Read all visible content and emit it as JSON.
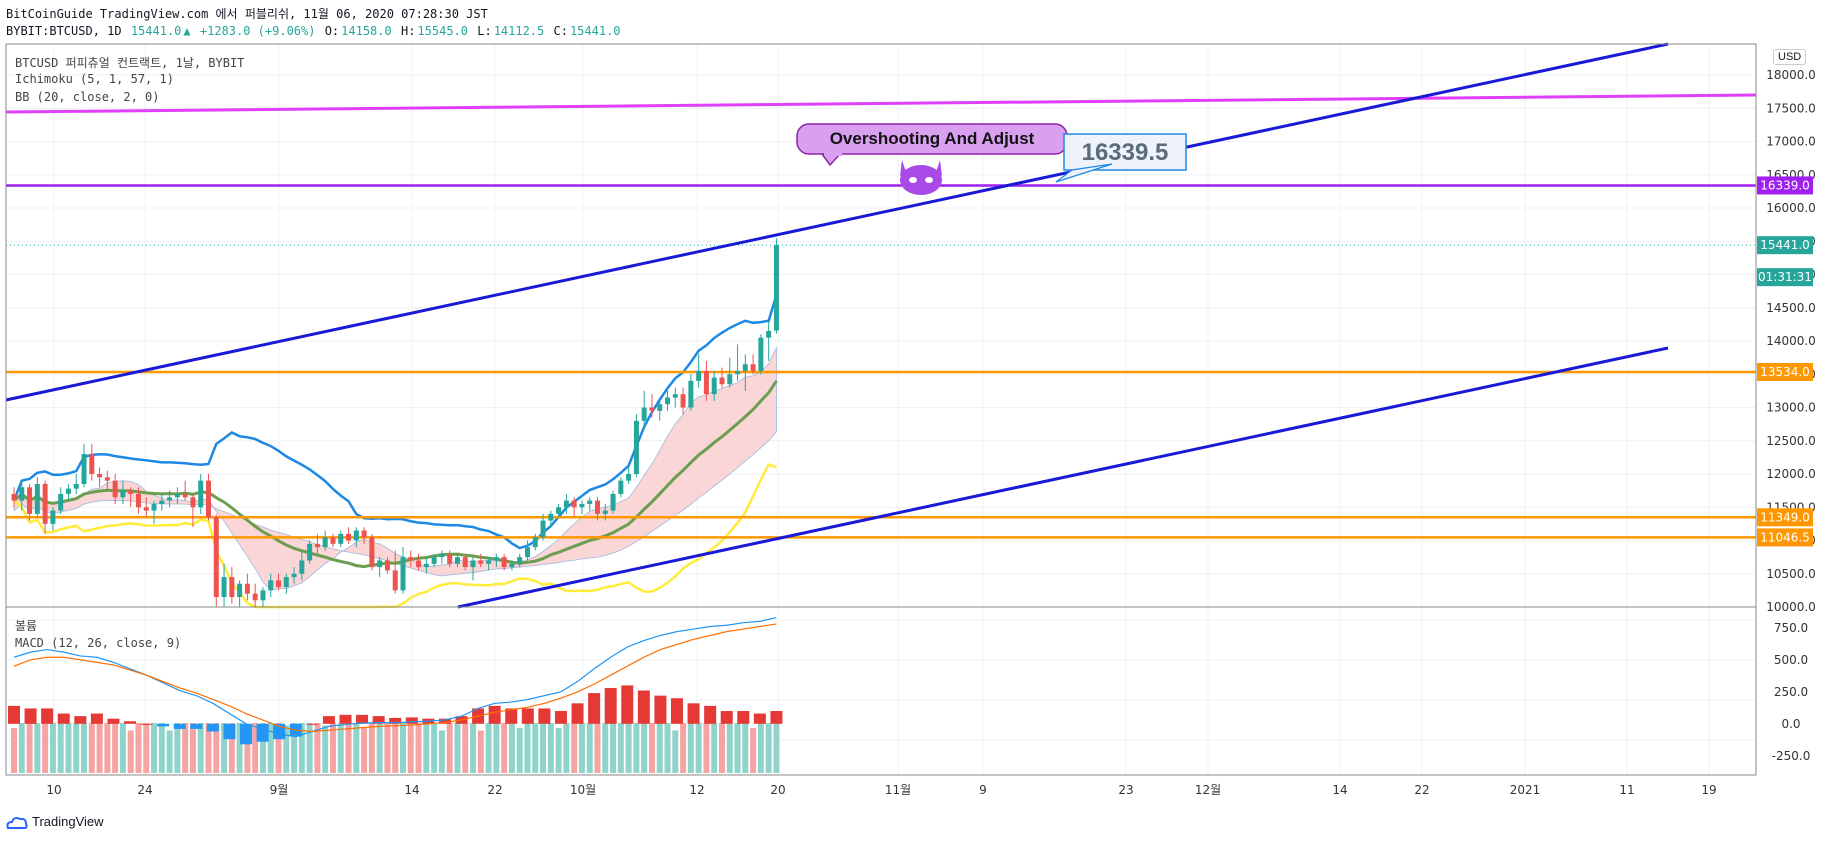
{
  "header": {
    "line1": "BitCoinGuide TradingView.com 에서 퍼블리쉬, 11월 06, 2020 07:28:30 JST",
    "symbol": "BYBIT:BTCUSD, 1D",
    "last": "15441.0",
    "change": "+1283.0 (+9.06%)",
    "o_label": "O:",
    "o": "14158.0",
    "h_label": "H:",
    "h": "15545.0",
    "l_label": "L:",
    "l": "14112.5",
    "c_label": "C:",
    "c": "15441.0"
  },
  "legend": {
    "title": "BTCUSD 퍼피츄얼 컨트랙트, 1날, BYBIT",
    "ichimoku": "Ichimoku (5, 1, 57, 1)",
    "bb": "BB (20, close, 2, 0)",
    "volume": "볼륨",
    "macd": "MACD (12, 26, close, 9)"
  },
  "currency_badge": "USD",
  "annotations": {
    "callout": "Overshooting And Adjust",
    "target_box": "16339.5"
  },
  "footer": {
    "logo_text": "TradingView"
  },
  "colors": {
    "up": "#26a69a",
    "down": "#ef5350",
    "bb": "#1e88e5",
    "sma": "#6b9e4e",
    "tenkan": "#ffeb3b",
    "cloud_red": "#f8c4c4",
    "cloud_blue": "#bbdefb",
    "trend": "#1a1ad6",
    "magenta": "#e040fb",
    "purple": "#a020f0",
    "orange": "#ff9800",
    "price_badge": "#26a69a"
  },
  "chart_data": {
    "type": "candlestick",
    "price_axis": {
      "ylim": [
        10000,
        18400
      ],
      "ticks": [
        "10000.0",
        "10500.0",
        "11000.0",
        "11500.0",
        "12000.0",
        "12500.0",
        "13000.0",
        "13500.0",
        "14000.0",
        "14500.0",
        "15000.0",
        "15500.0",
        "16000.0",
        "16500.0",
        "17000.0",
        "17500.0",
        "18000.0"
      ]
    },
    "price_labels": [
      {
        "text": "16339.0",
        "value": 16339,
        "color": "#a020f0"
      },
      {
        "text": "15441.0",
        "value": 15441,
        "color": "#26a69a"
      },
      {
        "text": "01:31:31",
        "value": 14960,
        "color": "#26a69a"
      },
      {
        "text": "13534.0",
        "value": 13534,
        "color": "#ff9800"
      },
      {
        "text": "11349.0",
        "value": 11349,
        "color": "#ff9800"
      },
      {
        "text": "11046.5",
        "value": 11046.5,
        "color": "#ff9800"
      }
    ],
    "horizontal_lines": [
      {
        "value": 16339,
        "color": "#a020f0"
      },
      {
        "value": 13534,
        "color": "#ff9800"
      },
      {
        "value": 11349,
        "color": "#ff9800"
      },
      {
        "value": 11046.5,
        "color": "#ff9800"
      }
    ],
    "x_ticks": [
      "10",
      "24",
      "9월",
      "14",
      "22",
      "10월",
      "12",
      "20",
      "11월",
      "9",
      "23",
      "12월",
      "14",
      "22",
      "2021",
      "11",
      "19"
    ],
    "candles": [
      {
        "o": 11700,
        "h": 11800,
        "l": 11500,
        "c": 11600
      },
      {
        "o": 11600,
        "h": 11900,
        "l": 11450,
        "c": 11800
      },
      {
        "o": 11800,
        "h": 11850,
        "l": 11300,
        "c": 11400
      },
      {
        "o": 11400,
        "h": 11950,
        "l": 11350,
        "c": 11850
      },
      {
        "o": 11850,
        "h": 11900,
        "l": 11100,
        "c": 11250
      },
      {
        "o": 11250,
        "h": 11500,
        "l": 11150,
        "c": 11450
      },
      {
        "o": 11450,
        "h": 11800,
        "l": 11400,
        "c": 11700
      },
      {
        "o": 11700,
        "h": 11850,
        "l": 11600,
        "c": 11780
      },
      {
        "o": 11780,
        "h": 12000,
        "l": 11700,
        "c": 11850
      },
      {
        "o": 11850,
        "h": 12450,
        "l": 11800,
        "c": 12300
      },
      {
        "o": 12300,
        "h": 12450,
        "l": 11900,
        "c": 12000
      },
      {
        "o": 12000,
        "h": 12100,
        "l": 11800,
        "c": 11950
      },
      {
        "o": 11950,
        "h": 12050,
        "l": 11750,
        "c": 11900
      },
      {
        "o": 11900,
        "h": 12000,
        "l": 11550,
        "c": 11650
      },
      {
        "o": 11650,
        "h": 11900,
        "l": 11550,
        "c": 11750
      },
      {
        "o": 11750,
        "h": 11800,
        "l": 11500,
        "c": 11700
      },
      {
        "o": 11700,
        "h": 11800,
        "l": 11400,
        "c": 11500
      },
      {
        "o": 11500,
        "h": 11650,
        "l": 11350,
        "c": 11450
      },
      {
        "o": 11450,
        "h": 11600,
        "l": 11250,
        "c": 11550
      },
      {
        "o": 11550,
        "h": 11700,
        "l": 11450,
        "c": 11600
      },
      {
        "o": 11600,
        "h": 11750,
        "l": 11500,
        "c": 11650
      },
      {
        "o": 11650,
        "h": 11800,
        "l": 11550,
        "c": 11700
      },
      {
        "o": 11700,
        "h": 11900,
        "l": 11600,
        "c": 11650
      },
      {
        "o": 11650,
        "h": 11700,
        "l": 11200,
        "c": 11500
      },
      {
        "o": 11500,
        "h": 12000,
        "l": 11400,
        "c": 11900
      },
      {
        "o": 11900,
        "h": 12000,
        "l": 11300,
        "c": 11350
      },
      {
        "o": 11350,
        "h": 11400,
        "l": 9900,
        "c": 10150
      },
      {
        "o": 10150,
        "h": 10650,
        "l": 9900,
        "c": 10450
      },
      {
        "o": 10450,
        "h": 10600,
        "l": 10050,
        "c": 10150
      },
      {
        "o": 10150,
        "h": 10400,
        "l": 10000,
        "c": 10350
      },
      {
        "o": 10350,
        "h": 10500,
        "l": 10100,
        "c": 10200
      },
      {
        "o": 10200,
        "h": 10350,
        "l": 10000,
        "c": 10100
      },
      {
        "o": 10100,
        "h": 10300,
        "l": 9950,
        "c": 10250
      },
      {
        "o": 10250,
        "h": 10500,
        "l": 10150,
        "c": 10400
      },
      {
        "o": 10400,
        "h": 10500,
        "l": 10250,
        "c": 10300
      },
      {
        "o": 10300,
        "h": 10500,
        "l": 10200,
        "c": 10450
      },
      {
        "o": 10450,
        "h": 10600,
        "l": 10350,
        "c": 10500
      },
      {
        "o": 10500,
        "h": 10850,
        "l": 10400,
        "c": 10700
      },
      {
        "o": 10700,
        "h": 11000,
        "l": 10650,
        "c": 10950
      },
      {
        "o": 10950,
        "h": 11100,
        "l": 10800,
        "c": 10900
      },
      {
        "o": 10900,
        "h": 11150,
        "l": 10850,
        "c": 11050
      },
      {
        "o": 11050,
        "h": 11100,
        "l": 10900,
        "c": 10950
      },
      {
        "o": 10950,
        "h": 11150,
        "l": 10900,
        "c": 11100
      },
      {
        "o": 11100,
        "h": 11200,
        "l": 10950,
        "c": 11000
      },
      {
        "o": 11000,
        "h": 11200,
        "l": 10900,
        "c": 11150
      },
      {
        "o": 11150,
        "h": 11200,
        "l": 10950,
        "c": 11050
      },
      {
        "o": 11050,
        "h": 11100,
        "l": 10550,
        "c": 10600
      },
      {
        "o": 10600,
        "h": 10750,
        "l": 10450,
        "c": 10700
      },
      {
        "o": 10700,
        "h": 10750,
        "l": 10500,
        "c": 10550
      },
      {
        "o": 10550,
        "h": 10850,
        "l": 10200,
        "c": 10250
      },
      {
        "o": 10250,
        "h": 10900,
        "l": 10200,
        "c": 10750
      },
      {
        "o": 10750,
        "h": 10850,
        "l": 10600,
        "c": 10700
      },
      {
        "o": 10700,
        "h": 10800,
        "l": 10550,
        "c": 10600
      },
      {
        "o": 10600,
        "h": 10750,
        "l": 10500,
        "c": 10650
      },
      {
        "o": 10650,
        "h": 10800,
        "l": 10600,
        "c": 10750
      },
      {
        "o": 10750,
        "h": 10850,
        "l": 10650,
        "c": 10800
      },
      {
        "o": 10800,
        "h": 10850,
        "l": 10600,
        "c": 10650
      },
      {
        "o": 10650,
        "h": 10800,
        "l": 10600,
        "c": 10750
      },
      {
        "o": 10750,
        "h": 10800,
        "l": 10550,
        "c": 10600
      },
      {
        "o": 10600,
        "h": 10750,
        "l": 10400,
        "c": 10700
      },
      {
        "o": 10700,
        "h": 10800,
        "l": 10600,
        "c": 10650
      },
      {
        "o": 10650,
        "h": 10750,
        "l": 10550,
        "c": 10700
      },
      {
        "o": 10700,
        "h": 10800,
        "l": 10600,
        "c": 10750
      },
      {
        "o": 10750,
        "h": 10800,
        "l": 10550,
        "c": 10600
      },
      {
        "o": 10600,
        "h": 10700,
        "l": 10550,
        "c": 10650
      },
      {
        "o": 10650,
        "h": 10800,
        "l": 10600,
        "c": 10750
      },
      {
        "o": 10750,
        "h": 11000,
        "l": 10700,
        "c": 10900
      },
      {
        "o": 10900,
        "h": 11100,
        "l": 10850,
        "c": 11050
      },
      {
        "o": 11050,
        "h": 11400,
        "l": 11000,
        "c": 11300
      },
      {
        "o": 11300,
        "h": 11450,
        "l": 11200,
        "c": 11400
      },
      {
        "o": 11400,
        "h": 11550,
        "l": 11350,
        "c": 11500
      },
      {
        "o": 11500,
        "h": 11700,
        "l": 11400,
        "c": 11600
      },
      {
        "o": 11600,
        "h": 11650,
        "l": 11350,
        "c": 11500
      },
      {
        "o": 11500,
        "h": 11600,
        "l": 11400,
        "c": 11550
      },
      {
        "o": 11550,
        "h": 11650,
        "l": 11450,
        "c": 11600
      },
      {
        "o": 11600,
        "h": 11650,
        "l": 11300,
        "c": 11400
      },
      {
        "o": 11400,
        "h": 11550,
        "l": 11300,
        "c": 11450
      },
      {
        "o": 11450,
        "h": 11750,
        "l": 11400,
        "c": 11700
      },
      {
        "o": 11700,
        "h": 11950,
        "l": 11650,
        "c": 11900
      },
      {
        "o": 11900,
        "h": 12100,
        "l": 11850,
        "c": 12000
      },
      {
        "o": 12000,
        "h": 12900,
        "l": 11950,
        "c": 12800
      },
      {
        "o": 12800,
        "h": 13250,
        "l": 12700,
        "c": 13000
      },
      {
        "o": 13000,
        "h": 13200,
        "l": 12850,
        "c": 12950
      },
      {
        "o": 12950,
        "h": 13100,
        "l": 12800,
        "c": 13050
      },
      {
        "o": 13050,
        "h": 13250,
        "l": 12950,
        "c": 13150
      },
      {
        "o": 13150,
        "h": 13300,
        "l": 13000,
        "c": 13200
      },
      {
        "o": 13200,
        "h": 13300,
        "l": 12900,
        "c": 13000
      },
      {
        "o": 13000,
        "h": 13500,
        "l": 12950,
        "c": 13400
      },
      {
        "o": 13400,
        "h": 13800,
        "l": 13300,
        "c": 13550
      },
      {
        "o": 13550,
        "h": 13700,
        "l": 13100,
        "c": 13200
      },
      {
        "o": 13200,
        "h": 13550,
        "l": 13100,
        "c": 13450
      },
      {
        "o": 13450,
        "h": 13600,
        "l": 13300,
        "c": 13350
      },
      {
        "o": 13350,
        "h": 13750,
        "l": 13300,
        "c": 13500
      },
      {
        "o": 13500,
        "h": 13950,
        "l": 13400,
        "c": 13550
      },
      {
        "o": 13550,
        "h": 13800,
        "l": 13250,
        "c": 13650
      },
      {
        "o": 13650,
        "h": 13800,
        "l": 13500,
        "c": 13550
      },
      {
        "o": 13550,
        "h": 14100,
        "l": 13500,
        "c": 14050
      },
      {
        "o": 14050,
        "h": 14300,
        "l": 13700,
        "c": 14150
      },
      {
        "o": 14158,
        "h": 15545,
        "l": 14112.5,
        "c": 15441
      }
    ],
    "projection_points": {
      "start_candle_index": 98,
      "x_offset_days": 16,
      "value": 16339.5
    },
    "volume_axis": {
      "ylim": [
        -400,
        850
      ],
      "ticks": [
        "750.0",
        "500.0",
        "250.0",
        "0.0",
        "-250.0"
      ]
    },
    "macd": {
      "macd_line": [
        520,
        560,
        580,
        560,
        530,
        520,
        480,
        430,
        380,
        320,
        260,
        220,
        160,
        80,
        0,
        -40,
        -80,
        -100,
        -60,
        -20,
        -5,
        5,
        10,
        8,
        15,
        20,
        30,
        60,
        120,
        160,
        170,
        190,
        220,
        250,
        330,
        430,
        520,
        600,
        650,
        690,
        720,
        740,
        760,
        770,
        790,
        800,
        830
      ],
      "signal_line": [
        450,
        500,
        520,
        520,
        500,
        480,
        460,
        420,
        380,
        330,
        280,
        240,
        190,
        140,
        80,
        30,
        -20,
        -50,
        -60,
        -50,
        -40,
        -30,
        -20,
        -15,
        -10,
        0,
        10,
        30,
        60,
        90,
        110,
        130,
        160,
        200,
        250,
        310,
        380,
        450,
        520,
        580,
        620,
        660,
        690,
        720,
        740,
        760,
        780
      ]
    }
  }
}
